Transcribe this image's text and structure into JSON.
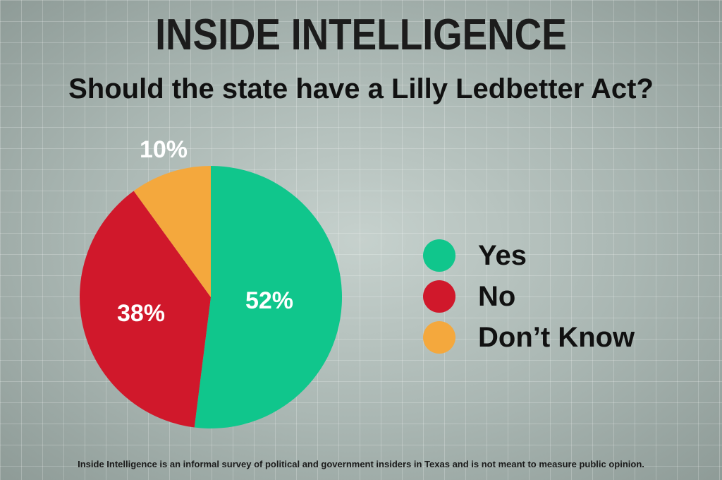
{
  "header": {
    "brand": "INSIDE INTELLIGENCE"
  },
  "footnote": "Inside Intelligence is an informal survey of political and government insiders in Texas and is not meant to measure public opinion.",
  "chart_data": {
    "type": "pie",
    "title": "Should the state have a Lilly Ledbetter Act?",
    "legend_position": "right",
    "slices": [
      {
        "label": "Yes",
        "value": 52,
        "display": "52%",
        "color": "#10c68c"
      },
      {
        "label": "No",
        "value": 38,
        "display": "38%",
        "color": "#d0182b"
      },
      {
        "label": "Don’t Know",
        "value": 10,
        "display": "10%",
        "color": "#f4a83d"
      }
    ]
  }
}
